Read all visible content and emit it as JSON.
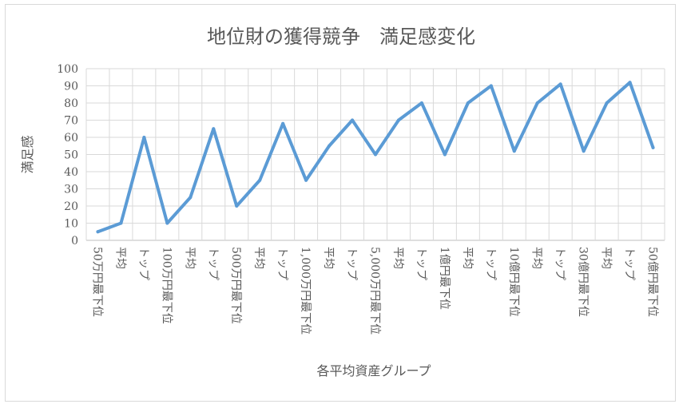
{
  "chart_data": {
    "type": "line",
    "title": "地位財の獲得競争　満足感変化",
    "xlabel": "各平均資産グループ",
    "ylabel": "満足感",
    "ylim": [
      0,
      100
    ],
    "yticks": [
      0,
      10,
      20,
      30,
      40,
      50,
      60,
      70,
      80,
      90,
      100
    ],
    "grid": true,
    "legend": "none",
    "categories": [
      "50万円最下位",
      "平均",
      "トップ",
      "100万円最下位",
      "平均",
      "トップ",
      "500万円最下位",
      "平均",
      "トップ",
      "1,000万円最下位",
      "平均",
      "トップ",
      "5,000万円最下位",
      "平均",
      "トップ",
      "1億円最下位",
      "平均",
      "トップ",
      "10億円最下位",
      "平均",
      "トップ",
      "30億円最下位",
      "平均",
      "トップ",
      "50億円最下位"
    ],
    "series": [
      {
        "values": [
          5,
          10,
          60,
          10,
          25,
          65,
          20,
          35,
          68,
          35,
          55,
          70,
          50,
          70,
          80,
          50,
          80,
          90,
          52,
          80,
          91,
          52,
          80,
          92,
          54
        ]
      }
    ],
    "line_color": "#5b9bd5"
  }
}
